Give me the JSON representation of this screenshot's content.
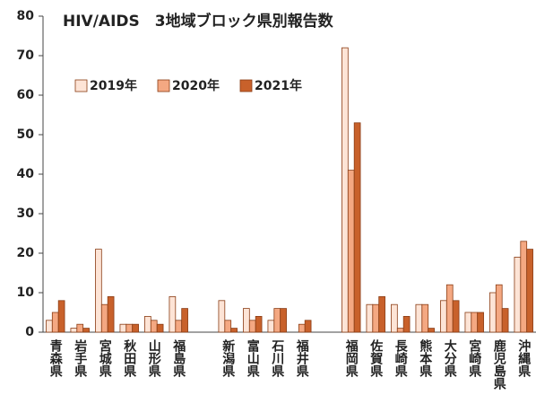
{
  "chart_data": {
    "type": "bar",
    "title": "HIV/AIDS　3地域ブロック県別報告数",
    "categories": [
      "青森県",
      "岩手県",
      "宮城県",
      "秋田県",
      "山形県",
      "福島県",
      null,
      "新潟県",
      "富山県",
      "石川県",
      "福井県",
      null,
      "福岡県",
      "佐賀県",
      "長崎県",
      "熊本県",
      "大分県",
      "宮崎県",
      "鹿児島県",
      "沖縄県"
    ],
    "series": [
      {
        "name": "2019年",
        "color": "#fde4d6",
        "values": [
          3,
          1,
          21,
          2,
          4,
          9,
          null,
          8,
          6,
          3,
          0,
          null,
          72,
          7,
          7,
          7,
          8,
          5,
          10,
          19
        ]
      },
      {
        "name": "2020年",
        "color": "#f4a882",
        "values": [
          5,
          2,
          7,
          2,
          3,
          3,
          null,
          3,
          3,
          6,
          2,
          null,
          41,
          7,
          1,
          7,
          12,
          5,
          12,
          23
        ]
      },
      {
        "name": "2021年",
        "color": "#c8612b",
        "values": [
          8,
          1,
          9,
          2,
          2,
          6,
          null,
          1,
          4,
          6,
          3,
          null,
          53,
          9,
          4,
          1,
          8,
          5,
          6,
          21
        ]
      }
    ],
    "ylim": [
      0,
      80
    ],
    "yticks": [
      0,
      10,
      20,
      30,
      40,
      50,
      60,
      70,
      80
    ],
    "grid": false,
    "legend": "upper left"
  }
}
